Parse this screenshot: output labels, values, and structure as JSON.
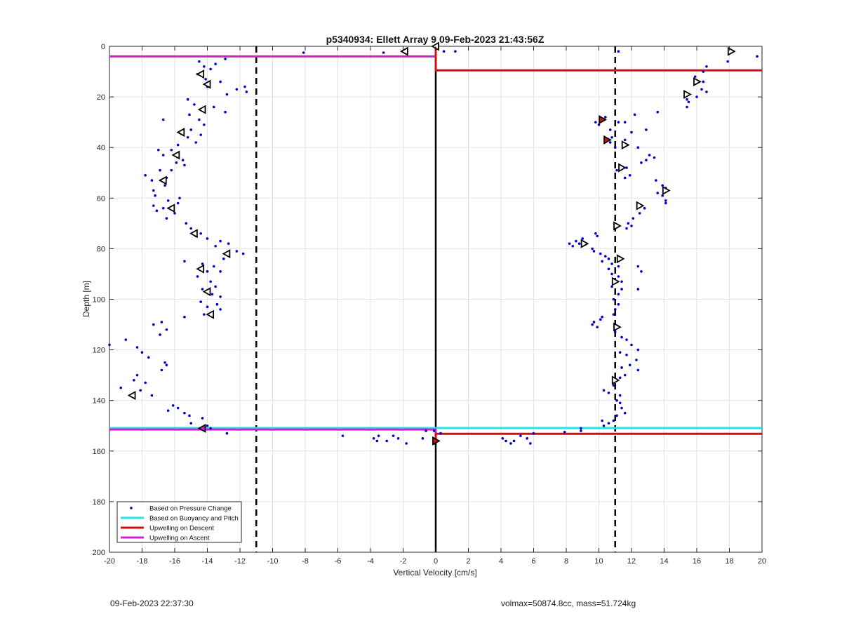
{
  "chart_data": {
    "type": "scatter",
    "title": "p5340934: Ellett Array 9 09-Feb-2023 21:43:56Z",
    "xlabel": "Vertical Velocity [cm/s]",
    "ylabel": "Depth [m]",
    "xlim": [
      -20,
      20
    ],
    "ylim": [
      0,
      200
    ],
    "y_reversed": true,
    "grid": true,
    "legend_position": "bottom-left",
    "x_ticks": [
      "-20",
      "-18",
      "-16",
      "-14",
      "-12",
      "-10",
      "-8",
      "-6",
      "-4",
      "-2",
      "0",
      "2",
      "4",
      "6",
      "8",
      "10",
      "12",
      "14",
      "16",
      "18",
      "20"
    ],
    "y_ticks": [
      "0",
      "20",
      "40",
      "60",
      "80",
      "100",
      "120",
      "140",
      "160",
      "180",
      "200"
    ],
    "reference_lines": {
      "dashed_x": [
        -11,
        11
      ],
      "zero_x": 0
    },
    "legend": [
      {
        "label": "Based on Pressure Change",
        "color": "#0000cc",
        "kind": "dot"
      },
      {
        "label": "Based on Buoyancy and Pitch",
        "color": "#22e5e5",
        "kind": "line"
      },
      {
        "label": "Upwelling on Descent",
        "color": "#d01010",
        "kind": "line"
      },
      {
        "label": "Upwelling on Ascent",
        "color": "#d020d0",
        "kind": "line"
      }
    ],
    "series": [
      {
        "name": "Based on Pressure Change",
        "color": "#0000cc",
        "points": [
          [
            -14.5,
            6
          ],
          [
            -14.2,
            8
          ],
          [
            -13.8,
            9
          ],
          [
            -14.6,
            11
          ],
          [
            -14.1,
            13
          ],
          [
            -13.5,
            7
          ],
          [
            -12.9,
            5
          ],
          [
            -13.2,
            14
          ],
          [
            -12.8,
            19
          ],
          [
            -14,
            16
          ],
          [
            -15.2,
            21
          ],
          [
            -14.8,
            23
          ],
          [
            -13.6,
            24
          ],
          [
            -12.9,
            26
          ],
          [
            -15.1,
            27
          ],
          [
            -14.5,
            29
          ],
          [
            -16.7,
            29
          ],
          [
            -14.2,
            31
          ],
          [
            -15,
            33
          ],
          [
            -14.4,
            35
          ],
          [
            -15.2,
            36
          ],
          [
            -14.7,
            38
          ],
          [
            -15.8,
            39
          ],
          [
            -16.2,
            41
          ],
          [
            -17,
            41
          ],
          [
            -16.7,
            43
          ],
          [
            -15.5,
            45
          ],
          [
            -15.9,
            46
          ],
          [
            -15.4,
            47
          ],
          [
            -16.2,
            49
          ],
          [
            -16.9,
            49
          ],
          [
            -17.8,
            51
          ],
          [
            -17.4,
            53
          ],
          [
            -16.5,
            52
          ],
          [
            -16.6,
            55
          ],
          [
            -17.3,
            57
          ],
          [
            -17.2,
            59
          ],
          [
            -15.7,
            60
          ],
          [
            -16.4,
            61
          ],
          [
            -15.8,
            62
          ],
          [
            -17.3,
            63
          ],
          [
            -16.7,
            64
          ],
          [
            -16,
            66
          ],
          [
            -17.1,
            65
          ],
          [
            -16.5,
            68
          ],
          [
            -15.3,
            70
          ],
          [
            -15,
            72
          ],
          [
            -14.4,
            74
          ],
          [
            -14.7,
            75
          ],
          [
            -14,
            76
          ],
          [
            -13.2,
            77
          ],
          [
            -12.7,
            78
          ],
          [
            -13.5,
            79
          ],
          [
            -12.2,
            81
          ],
          [
            -11.8,
            82
          ],
          [
            -13,
            84
          ],
          [
            -15.4,
            85
          ],
          [
            -14.3,
            86
          ],
          [
            -13.6,
            87
          ],
          [
            -14,
            89
          ],
          [
            -13.2,
            89
          ],
          [
            -14.6,
            91
          ],
          [
            -13.8,
            93
          ],
          [
            -13.5,
            95
          ],
          [
            -14.3,
            96
          ],
          [
            -13.7,
            98
          ],
          [
            -13.2,
            99
          ],
          [
            -14.4,
            101
          ],
          [
            -13.4,
            102
          ],
          [
            -14,
            103
          ],
          [
            -13.2,
            104
          ],
          [
            -14.2,
            106
          ],
          [
            -15.4,
            107
          ],
          [
            -16.8,
            109
          ],
          [
            -17.3,
            110
          ],
          [
            -16.5,
            112
          ],
          [
            -16.9,
            114
          ],
          [
            -19,
            116
          ],
          [
            -20,
            118
          ],
          [
            -18.3,
            119
          ],
          [
            -18,
            121
          ],
          [
            -17.6,
            123
          ],
          [
            -16.6,
            125
          ],
          [
            -16.5,
            126
          ],
          [
            -16.8,
            128
          ],
          [
            -18.3,
            130
          ],
          [
            -18.5,
            132
          ],
          [
            -17.8,
            133
          ],
          [
            -19.3,
            135
          ],
          [
            -18.1,
            136
          ],
          [
            -17.4,
            138
          ],
          [
            -16.1,
            142
          ],
          [
            -15.8,
            143
          ],
          [
            -16.4,
            144
          ],
          [
            -15.4,
            145
          ],
          [
            -15.1,
            146
          ],
          [
            -14.3,
            147
          ],
          [
            -15,
            149
          ],
          [
            -14,
            150
          ],
          [
            -13.8,
            151
          ],
          [
            -12.8,
            153
          ],
          [
            -12.2,
            17
          ],
          [
            -11.7,
            16
          ],
          [
            -11.6,
            18
          ],
          [
            -8.1,
            2.5
          ],
          [
            -3.2,
            2.5
          ],
          [
            -5.7,
            154
          ],
          [
            -3.8,
            155
          ],
          [
            -3.5,
            154
          ],
          [
            -3,
            156
          ],
          [
            -3.6,
            156
          ],
          [
            -2.6,
            154
          ],
          [
            -2.3,
            155
          ],
          [
            -1.8,
            157
          ],
          [
            -0.8,
            155
          ],
          [
            -0.6,
            152
          ],
          [
            -0.1,
            152
          ],
          [
            -0.1,
            157
          ],
          [
            0.3,
            153
          ],
          [
            0.5,
            2
          ],
          [
            1.2,
            2
          ],
          [
            4.1,
            155
          ],
          [
            4.3,
            156
          ],
          [
            4.6,
            157
          ],
          [
            4.8,
            156
          ],
          [
            5.2,
            154
          ],
          [
            5.6,
            155
          ],
          [
            5.8,
            157
          ],
          [
            6,
            153
          ],
          [
            7.9,
            152.5
          ],
          [
            8.9,
            151
          ],
          [
            8.9,
            152
          ],
          [
            8.6,
            77
          ],
          [
            8.2,
            78
          ],
          [
            8.4,
            79
          ],
          [
            8.8,
            78
          ],
          [
            9,
            76
          ],
          [
            9.6,
            80
          ],
          [
            9.7,
            81
          ],
          [
            10.1,
            82
          ],
          [
            9.9,
            75
          ],
          [
            9.8,
            74
          ],
          [
            10.4,
            83
          ],
          [
            10.2,
            85
          ],
          [
            10.6,
            84
          ],
          [
            10.8,
            86
          ],
          [
            10.6,
            88
          ],
          [
            11.2,
            87
          ],
          [
            12.4,
            87
          ],
          [
            12.6,
            89
          ],
          [
            10.8,
            90
          ],
          [
            11.2,
            91
          ],
          [
            11.4,
            93
          ],
          [
            10.8,
            95
          ],
          [
            11.4,
            96
          ],
          [
            12.4,
            96
          ],
          [
            11.2,
            98
          ],
          [
            10.9,
            100
          ],
          [
            11.2,
            102
          ],
          [
            11,
            104
          ],
          [
            10.9,
            106
          ],
          [
            10.2,
            107
          ],
          [
            10.1,
            108
          ],
          [
            9.7,
            109
          ],
          [
            9.6,
            110
          ],
          [
            9.9,
            111
          ],
          [
            11,
            113
          ],
          [
            11.4,
            115
          ],
          [
            11.7,
            116
          ],
          [
            12,
            118
          ],
          [
            12.4,
            120
          ],
          [
            11.3,
            121
          ],
          [
            11.7,
            122
          ],
          [
            12.3,
            124
          ],
          [
            11.9,
            126
          ],
          [
            11.4,
            127
          ],
          [
            12.4,
            128
          ],
          [
            11.6,
            130
          ],
          [
            11.3,
            131
          ],
          [
            10.9,
            134
          ],
          [
            10.3,
            136
          ],
          [
            10.6,
            137
          ],
          [
            11.3,
            138
          ],
          [
            11.1,
            140
          ],
          [
            11.3,
            141
          ],
          [
            11.4,
            143
          ],
          [
            11.6,
            145
          ],
          [
            11.1,
            146
          ],
          [
            10.9,
            148
          ],
          [
            10.6,
            149
          ],
          [
            10.3,
            150
          ],
          [
            10.2,
            148
          ],
          [
            9.8,
            30
          ],
          [
            10,
            31
          ],
          [
            10.4,
            28
          ],
          [
            10.7,
            33
          ],
          [
            11.2,
            30
          ],
          [
            12,
            34
          ],
          [
            12.2,
            27
          ],
          [
            11.6,
            30
          ],
          [
            12.9,
            33
          ],
          [
            13.6,
            26
          ],
          [
            10.8,
            36
          ],
          [
            10.7,
            38
          ],
          [
            11.6,
            37
          ],
          [
            11,
            40
          ],
          [
            12.4,
            40
          ],
          [
            13.1,
            43
          ],
          [
            12.9,
            45
          ],
          [
            13.4,
            44
          ],
          [
            12.6,
            46
          ],
          [
            11.7,
            48
          ],
          [
            11.9,
            51
          ],
          [
            11.1,
            49
          ],
          [
            11.6,
            52
          ],
          [
            13.5,
            53
          ],
          [
            13.9,
            55
          ],
          [
            14.1,
            56
          ],
          [
            13.6,
            58
          ],
          [
            14.1,
            61
          ],
          [
            14.1,
            62
          ],
          [
            13.9,
            59
          ],
          [
            12.8,
            64
          ],
          [
            12.5,
            66
          ],
          [
            12.1,
            68
          ],
          [
            11.8,
            70
          ],
          [
            11.7,
            72
          ],
          [
            12,
            71
          ],
          [
            15.4,
            21
          ],
          [
            15.5,
            22
          ],
          [
            15.4,
            24
          ],
          [
            16,
            20
          ],
          [
            16.3,
            17
          ],
          [
            16.6,
            18
          ],
          [
            16.4,
            14
          ],
          [
            15.9,
            12
          ],
          [
            16.4,
            10
          ],
          [
            16.6,
            8
          ],
          [
            17.9,
            6
          ],
          [
            19.7,
            4
          ],
          [
            11.2,
            2
          ]
        ]
      },
      {
        "name": "Upwelling on Ascent",
        "color": "#d020d0",
        "markers": [
          [
            -14.4,
            11
          ],
          [
            -14,
            15
          ],
          [
            -14.3,
            25
          ],
          [
            -15.6,
            34
          ],
          [
            -15.9,
            43
          ],
          [
            -16.7,
            53
          ],
          [
            -16.2,
            64
          ],
          [
            -14.8,
            74
          ],
          [
            -12.8,
            82
          ],
          [
            -14.4,
            88
          ],
          [
            -14,
            97
          ],
          [
            -13.8,
            106
          ],
          [
            -18.6,
            138
          ],
          [
            -14.3,
            151
          ],
          [
            -1.9,
            2
          ],
          [
            0,
            0
          ]
        ]
      },
      {
        "name": "Upwelling on Descent",
        "color": "#d01010",
        "markers": [
          [
            10.2,
            29
          ],
          [
            10.5,
            37
          ],
          [
            11.6,
            39
          ],
          [
            11.4,
            48
          ],
          [
            14.1,
            57
          ],
          [
            12.5,
            63
          ],
          [
            11.1,
            71
          ],
          [
            9.1,
            78
          ],
          [
            11.3,
            84
          ],
          [
            11,
            93
          ],
          [
            11.1,
            111
          ],
          [
            11,
            132
          ],
          [
            15.4,
            19
          ],
          [
            16,
            14
          ],
          [
            18.1,
            2
          ],
          [
            0,
            156
          ]
        ]
      }
    ],
    "lines": [
      {
        "name": "Upwelling on Ascent",
        "color": "#d020d0",
        "path": [
          [
            -20,
            4
          ],
          [
            0,
            4
          ],
          [
            0,
            0
          ]
        ]
      },
      {
        "name": "Upwelling on Descent",
        "color": "#d01010",
        "path": [
          [
            0,
            0
          ],
          [
            0,
            9.5
          ],
          [
            20,
            9.5
          ]
        ]
      },
      {
        "name": "Based on Buoyancy and Pitch",
        "color": "#22e5e5",
        "path": [
          [
            -20,
            150.9
          ],
          [
            20,
            150.9
          ]
        ]
      },
      {
        "name": "Upwelling on Ascent",
        "color": "#d020d0",
        "path": [
          [
            -20,
            151.5
          ],
          [
            0,
            151.5
          ],
          [
            0,
            156
          ]
        ]
      },
      {
        "name": "Upwelling on Descent",
        "color": "#d01010",
        "path": [
          [
            0,
            156
          ],
          [
            0,
            153.2
          ],
          [
            20,
            153.2
          ]
        ]
      }
    ]
  },
  "footer": {
    "timestamp": "09-Feb-2023 22:37:30",
    "info": "volmax=50874.8cc, mass=51.724kg"
  }
}
